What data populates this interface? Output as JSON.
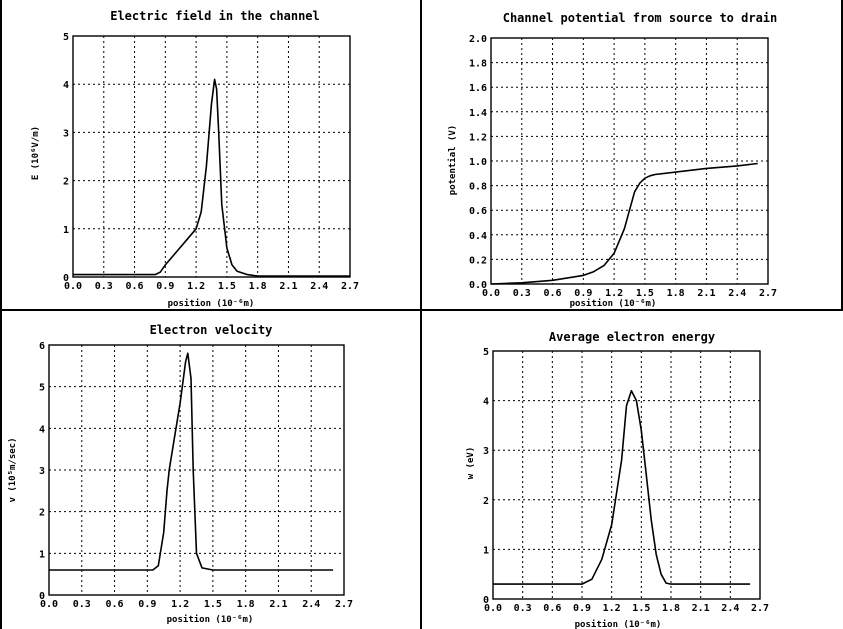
{
  "chart_data": [
    {
      "type": "line",
      "title": "Electric field in the channel",
      "xlabel": "position (10⁻⁶m)",
      "ylabel": "E (10⁶V/m)",
      "xlim": [
        0,
        2.7
      ],
      "ylim": [
        0,
        5
      ],
      "xticks": [
        "0.0",
        "0.3",
        "0.6",
        "0.9",
        "1.2",
        "1.5",
        "1.8",
        "2.1",
        "2.4",
        "2.7"
      ],
      "yticks": [
        "0",
        "1",
        "2",
        "3",
        "4",
        "5"
      ],
      "grid": true,
      "series": [
        {
          "x": [
            0.0,
            0.3,
            0.6,
            0.8,
            0.85,
            0.9,
            1.0,
            1.1,
            1.2,
            1.25,
            1.3,
            1.35,
            1.38,
            1.4,
            1.42,
            1.45,
            1.5,
            1.55,
            1.6,
            1.7,
            1.8,
            2.0,
            2.4,
            2.7
          ],
          "y": [
            0.05,
            0.05,
            0.05,
            0.05,
            0.1,
            0.25,
            0.5,
            0.75,
            1.0,
            1.35,
            2.3,
            3.6,
            4.1,
            3.9,
            3.0,
            1.5,
            0.6,
            0.25,
            0.12,
            0.05,
            0.02,
            0.02,
            0.02,
            0.02
          ]
        }
      ]
    },
    {
      "type": "line",
      "title": "Channel potential from source to drain",
      "xlabel": "position (10⁻⁶m)",
      "ylabel": "potential (V)",
      "xlim": [
        0,
        2.7
      ],
      "ylim": [
        0,
        2.0
      ],
      "xticks": [
        "0.0",
        "0.3",
        "0.6",
        "0.9",
        "1.2",
        "1.5",
        "1.8",
        "2.1",
        "2.4",
        "2.7"
      ],
      "yticks": [
        "0.0",
        "0.2",
        "0.4",
        "0.6",
        "0.8",
        "1.0",
        "1.2",
        "1.4",
        "1.6",
        "1.8",
        "2.0"
      ],
      "grid": true,
      "series": [
        {
          "x": [
            0.0,
            0.3,
            0.6,
            0.9,
            1.0,
            1.1,
            1.2,
            1.3,
            1.35,
            1.4,
            1.45,
            1.5,
            1.55,
            1.6,
            1.8,
            2.1,
            2.4,
            2.6
          ],
          "y": [
            0.0,
            0.01,
            0.03,
            0.07,
            0.1,
            0.15,
            0.25,
            0.45,
            0.6,
            0.75,
            0.82,
            0.86,
            0.88,
            0.89,
            0.91,
            0.94,
            0.96,
            0.98
          ]
        }
      ]
    },
    {
      "type": "line",
      "title": "Electron velocity",
      "xlabel": "position (10⁻⁶m)",
      "ylabel": "v (10⁵m/sec)",
      "xlim": [
        0,
        2.7
      ],
      "ylim": [
        0,
        6
      ],
      "xticks": [
        "0.0",
        "0.3",
        "0.6",
        "0.9",
        "1.2",
        "1.5",
        "1.8",
        "2.1",
        "2.4",
        "2.7"
      ],
      "yticks": [
        "0",
        "1",
        "2",
        "3",
        "4",
        "5",
        "6"
      ],
      "grid": true,
      "series": [
        {
          "x": [
            0.0,
            0.5,
            0.95,
            1.0,
            1.05,
            1.08,
            1.1,
            1.15,
            1.2,
            1.25,
            1.27,
            1.3,
            1.32,
            1.35,
            1.4,
            1.5,
            2.0,
            2.6
          ],
          "y": [
            0.6,
            0.6,
            0.6,
            0.7,
            1.5,
            2.5,
            3.0,
            3.8,
            4.6,
            5.6,
            5.8,
            5.2,
            3.0,
            1.0,
            0.65,
            0.6,
            0.6,
            0.6
          ]
        }
      ]
    },
    {
      "type": "line",
      "title": "Average electron energy",
      "xlabel": "position (10⁻⁶m)",
      "ylabel": "w (eV)",
      "xlim": [
        0,
        2.7
      ],
      "ylim": [
        0,
        5
      ],
      "xticks": [
        "0.0",
        "0.3",
        "0.6",
        "0.9",
        "1.2",
        "1.5",
        "1.8",
        "2.1",
        "2.4",
        "2.7"
      ],
      "yticks": [
        "0",
        "1",
        "2",
        "3",
        "4",
        "5"
      ],
      "grid": true,
      "series": [
        {
          "x": [
            0.0,
            0.5,
            0.9,
            1.0,
            1.1,
            1.2,
            1.3,
            1.35,
            1.4,
            1.45,
            1.5,
            1.55,
            1.6,
            1.65,
            1.7,
            1.75,
            1.8,
            2.0,
            2.6
          ],
          "y": [
            0.3,
            0.3,
            0.3,
            0.4,
            0.8,
            1.5,
            2.8,
            3.9,
            4.2,
            4.0,
            3.4,
            2.5,
            1.6,
            0.9,
            0.5,
            0.32,
            0.3,
            0.3,
            0.3
          ]
        }
      ]
    }
  ]
}
